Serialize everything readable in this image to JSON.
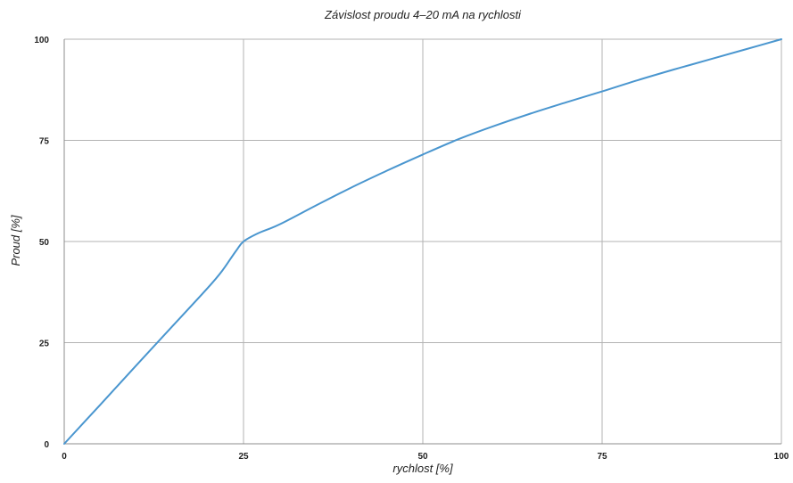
{
  "chart_data": {
    "type": "line",
    "title": "Závislost proudu 4–20 mA na rychlosti",
    "xlabel": "rychlost [%]",
    "ylabel": "Proud [%]",
    "xlim": [
      0,
      100
    ],
    "ylim": [
      0,
      100
    ],
    "xticks": [
      "0",
      "25",
      "50",
      "75",
      "100"
    ],
    "yticks": [
      "0",
      "25",
      "50",
      "75",
      "100"
    ],
    "grid": true,
    "legend": "none",
    "series": [
      {
        "color": "#4a96cf",
        "x": [
          0,
          5,
          10,
          15,
          20,
          22,
          24,
          25,
          27,
          30,
          35,
          40,
          45,
          50,
          55,
          60,
          65,
          70,
          75,
          80,
          85,
          90,
          95,
          100
        ],
        "y": [
          0,
          9.6,
          19.3,
          28.9,
          38.5,
          42.7,
          47.8,
          50,
          52,
          54.2,
          58.8,
          63.3,
          67.5,
          71.5,
          75.3,
          78.6,
          81.6,
          84.4,
          87.1,
          89.9,
          92.5,
          95.0,
          97.5,
          100
        ]
      }
    ]
  }
}
